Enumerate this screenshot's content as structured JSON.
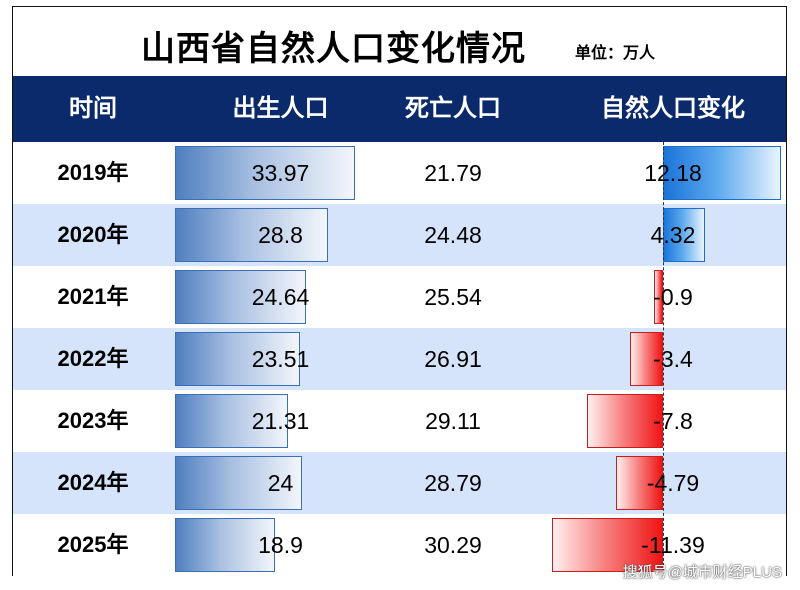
{
  "title": "山西省自然人口变化情况",
  "unit": "单位：万人",
  "watermark": "搜狐号@城市财经PLUS",
  "colors": {
    "header_bg": "#0b2a6b",
    "row_alt": "#d6e4fb",
    "birth_bar": "#4f7fc0",
    "positive_bar": "#1b74d8",
    "negative_bar": "#f01414"
  },
  "chart_data": {
    "type": "table",
    "columns": [
      "时间",
      "出生人口",
      "死亡人口",
      "自然人口变化"
    ],
    "rows": [
      {
        "year": "2019年",
        "births": 33.97,
        "births_label": "33.97",
        "deaths": 21.79,
        "deaths_label": "21.79",
        "change": 12.18,
        "change_label": "12.18"
      },
      {
        "year": "2020年",
        "births": 28.8,
        "births_label": "28.8",
        "deaths": 24.48,
        "deaths_label": "24.48",
        "change": 4.32,
        "change_label": "4.32"
      },
      {
        "year": "2021年",
        "births": 24.64,
        "births_label": "24.64",
        "deaths": 25.54,
        "deaths_label": "25.54",
        "change": -0.9,
        "change_label": "-0.9"
      },
      {
        "year": "2022年",
        "births": 23.51,
        "births_label": "23.51",
        "deaths": 26.91,
        "deaths_label": "26.91",
        "change": -3.4,
        "change_label": "-3.4"
      },
      {
        "year": "2023年",
        "births": 21.31,
        "births_label": "21.31",
        "deaths": 29.11,
        "deaths_label": "29.11",
        "change": -7.8,
        "change_label": "-7.8"
      },
      {
        "year": "2024年",
        "births": 24,
        "births_label": "24",
        "deaths": 28.79,
        "deaths_label": "28.79",
        "change": -4.79,
        "change_label": "-4.79"
      },
      {
        "year": "2025年",
        "births": 18.9,
        "births_label": "18.9",
        "deaths": 30.29,
        "deaths_label": "30.29",
        "change": -11.39,
        "change_label": "-11.39"
      }
    ]
  }
}
